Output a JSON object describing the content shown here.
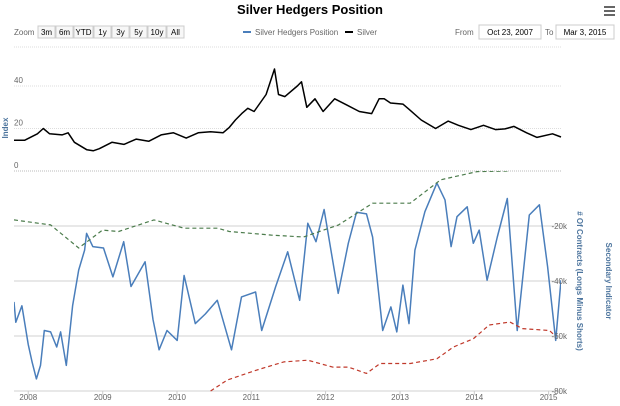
{
  "chart_data": {
    "type": "line",
    "title": "Silver Hedgers Position",
    "range_selector": {
      "label": "Zoom",
      "buttons": [
        "3m",
        "6m",
        "YTD",
        "1y",
        "3y",
        "5y",
        "10y",
        "All"
      ],
      "from_label": "From",
      "from_value": "Oct 23, 2007",
      "to_label": "To",
      "to_value": "Mar 3, 2015"
    },
    "legend": {
      "placement": "top",
      "items": [
        {
          "name": "Silver Hedgers Position",
          "color": "#4a7ebb"
        },
        {
          "name": "Silver",
          "color": "#000000"
        }
      ]
    },
    "x_axis": {
      "type": "datetime",
      "range": [
        "2007-10-23",
        "2015-03-03"
      ],
      "tick_labels": [
        "2008",
        "2009",
        "2010",
        "2011",
        "2012",
        "2013",
        "2014",
        "2015"
      ]
    },
    "panels": [
      {
        "id": "top",
        "ylabel": "Index",
        "ylim": [
          0,
          55
        ],
        "tick_labels": [
          "0",
          "20",
          "40"
        ],
        "ticks": [
          0,
          20,
          40
        ],
        "grid": "dotted"
      },
      {
        "id": "bottom",
        "ylabel_right_1": "# Of Contracts (Longs Minus Shorts)",
        "ylabel_right_2": "Secondary Indicator",
        "ylim": [
          -80000,
          0
        ],
        "tick_labels": [
          "-20k",
          "-40k",
          "-60k",
          "-80k"
        ],
        "ticks": [
          -20000,
          -40000,
          -60000,
          -80000
        ],
        "grid": "solid"
      }
    ],
    "series": [
      {
        "name": "Silver",
        "panel": "top",
        "color": "#000000",
        "dash": "solid",
        "points": [
          [
            "2007-10-23",
            14.5
          ],
          [
            "2007-12-15",
            14.5
          ],
          [
            "2008-02-15",
            17.5
          ],
          [
            "2008-03-15",
            20
          ],
          [
            "2008-04-15",
            17.5
          ],
          [
            "2008-06-15",
            17
          ],
          [
            "2008-07-15",
            18
          ],
          [
            "2008-08-15",
            13.5
          ],
          [
            "2008-10-15",
            10
          ],
          [
            "2008-11-15",
            9.5
          ],
          [
            "2008-12-15",
            10.5
          ],
          [
            "2009-02-15",
            13.5
          ],
          [
            "2009-04-15",
            12.5
          ],
          [
            "2009-06-15",
            15
          ],
          [
            "2009-08-15",
            14
          ],
          [
            "2009-10-15",
            17
          ],
          [
            "2009-12-15",
            18
          ],
          [
            "2010-02-15",
            15.5
          ],
          [
            "2010-04-15",
            18
          ],
          [
            "2010-06-15",
            18.5
          ],
          [
            "2010-08-15",
            18
          ],
          [
            "2010-09-15",
            20.5
          ],
          [
            "2010-10-15",
            24
          ],
          [
            "2010-11-15",
            27
          ],
          [
            "2010-12-15",
            29.5
          ],
          [
            "2011-01-15",
            28
          ],
          [
            "2011-03-15",
            36
          ],
          [
            "2011-04-25",
            48
          ],
          [
            "2011-05-15",
            36
          ],
          [
            "2011-06-15",
            35
          ],
          [
            "2011-08-15",
            40
          ],
          [
            "2011-09-05",
            42
          ],
          [
            "2011-10-01",
            30
          ],
          [
            "2011-11-10",
            34
          ],
          [
            "2011-12-20",
            28
          ],
          [
            "2012-02-15",
            34
          ],
          [
            "2012-04-15",
            31
          ],
          [
            "2012-06-15",
            28
          ],
          [
            "2012-08-15",
            27
          ],
          [
            "2012-09-20",
            34
          ],
          [
            "2012-10-15",
            34
          ],
          [
            "2012-11-15",
            32
          ],
          [
            "2013-01-15",
            31.5
          ],
          [
            "2013-02-15",
            29
          ],
          [
            "2013-04-15",
            24
          ],
          [
            "2013-06-25",
            20
          ],
          [
            "2013-08-25",
            23.5
          ],
          [
            "2013-10-15",
            21.5
          ],
          [
            "2013-12-15",
            19.5
          ],
          [
            "2014-02-15",
            21.5
          ],
          [
            "2014-04-15",
            19.5
          ],
          [
            "2014-06-01",
            19.8
          ],
          [
            "2014-07-15",
            21
          ],
          [
            "2014-09-15",
            18
          ],
          [
            "2014-11-05",
            15.8
          ],
          [
            "2015-01-20",
            17.5
          ],
          [
            "2015-03-03",
            16
          ]
        ]
      },
      {
        "name": "Silver Hedgers Position",
        "panel": "bottom",
        "color": "#4a7ebb",
        "dash": "solid",
        "points": [
          [
            "2007-10-23",
            -47600
          ],
          [
            "2007-11-01",
            -55000
          ],
          [
            "2007-12-01",
            -49000
          ],
          [
            "2008-01-01",
            -63000
          ],
          [
            "2008-01-20",
            -69500
          ],
          [
            "2008-02-10",
            -75600
          ],
          [
            "2008-03-01",
            -70700
          ],
          [
            "2008-03-20",
            -58000
          ],
          [
            "2008-04-20",
            -58500
          ],
          [
            "2008-05-20",
            -64000
          ],
          [
            "2008-06-08",
            -58500
          ],
          [
            "2008-07-06",
            -70700
          ],
          [
            "2008-08-06",
            -49000
          ],
          [
            "2008-09-05",
            -36000
          ],
          [
            "2008-10-04",
            -28800
          ],
          [
            "2008-10-14",
            -22700
          ],
          [
            "2008-11-13",
            -27500
          ],
          [
            "2009-01-05",
            -28000
          ],
          [
            "2009-02-20",
            -38500
          ],
          [
            "2009-04-14",
            -25700
          ],
          [
            "2009-05-20",
            -42000
          ],
          [
            "2009-07-28",
            -33000
          ],
          [
            "2009-09-05",
            -54000
          ],
          [
            "2009-10-05",
            -65000
          ],
          [
            "2009-11-13",
            -58000
          ],
          [
            "2010-01-02",
            -61600
          ],
          [
            "2010-02-05",
            -38000
          ],
          [
            "2010-04-01",
            -55500
          ],
          [
            "2010-05-20",
            -52000
          ],
          [
            "2010-07-18",
            -47000
          ],
          [
            "2010-09-26",
            -65000
          ],
          [
            "2010-11-14",
            -45800
          ],
          [
            "2011-01-22",
            -44000
          ],
          [
            "2011-02-21",
            -58000
          ],
          [
            "2011-05-01",
            -42000
          ],
          [
            "2011-06-29",
            -29400
          ],
          [
            "2011-08-27",
            -47000
          ],
          [
            "2011-10-06",
            -19000
          ],
          [
            "2011-11-15",
            -25700
          ],
          [
            "2011-12-25",
            -14000
          ],
          [
            "2012-03-03",
            -44500
          ],
          [
            "2012-04-22",
            -26300
          ],
          [
            "2012-06-01",
            -15000
          ],
          [
            "2012-07-20",
            -15600
          ],
          [
            "2012-08-19",
            -24000
          ],
          [
            "2012-10-08",
            -58000
          ],
          [
            "2012-11-17",
            -49400
          ],
          [
            "2012-12-16",
            -58500
          ],
          [
            "2013-01-15",
            -41500
          ],
          [
            "2013-02-14",
            -55500
          ],
          [
            "2013-03-15",
            -28800
          ],
          [
            "2013-05-03",
            -14800
          ],
          [
            "2013-07-01",
            -4400
          ],
          [
            "2013-08-10",
            -10500
          ],
          [
            "2013-09-09",
            -27500
          ],
          [
            "2013-10-08",
            -16600
          ],
          [
            "2013-11-27",
            -13000
          ],
          [
            "2013-12-27",
            -26300
          ],
          [
            "2014-01-25",
            -21500
          ],
          [
            "2014-03-05",
            -39700
          ],
          [
            "2014-04-24",
            -24000
          ],
          [
            "2014-06-12",
            -10000
          ],
          [
            "2014-07-31",
            -58000
          ],
          [
            "2014-09-28",
            -16000
          ],
          [
            "2014-11-17",
            -12300
          ],
          [
            "2014-12-27",
            -34800
          ],
          [
            "2015-02-05",
            -61600
          ],
          [
            "2015-03-03",
            -39700
          ]
        ]
      },
      {
        "panel": "bottom",
        "color": "#4c7c4c",
        "dash": "dashed",
        "points": [
          [
            "2007-10-23",
            -17800
          ],
          [
            "2008-04-20",
            -19600
          ],
          [
            "2008-09-05",
            -28000
          ],
          [
            "2008-12-31",
            -21500
          ],
          [
            "2009-03-20",
            -22000
          ],
          [
            "2009-09-10",
            -17800
          ],
          [
            "2010-02-05",
            -20800
          ],
          [
            "2010-07-20",
            -20800
          ],
          [
            "2010-09-15",
            -22000
          ],
          [
            "2011-04-10",
            -23300
          ],
          [
            "2011-09-15",
            -24000
          ],
          [
            "2012-03-05",
            -19600
          ],
          [
            "2012-08-19",
            -11700
          ],
          [
            "2013-02-20",
            -11700
          ],
          [
            "2013-07-20",
            -3200
          ],
          [
            "2014-01-15",
            -200
          ],
          [
            "2014-06-25",
            0
          ]
        ]
      },
      {
        "panel": "bottom",
        "color": "#c0392b",
        "dash": "dashed",
        "points": [
          [
            "2010-06-15",
            -80000
          ],
          [
            "2010-09-05",
            -76000
          ],
          [
            "2011-01-22",
            -72500
          ],
          [
            "2011-06-10",
            -69400
          ],
          [
            "2011-10-06",
            -68800
          ],
          [
            "2012-02-05",
            -71300
          ],
          [
            "2012-04-22",
            -71300
          ],
          [
            "2012-07-20",
            -73600
          ],
          [
            "2012-09-25",
            -70000
          ],
          [
            "2013-02-20",
            -70000
          ],
          [
            "2013-07-01",
            -68300
          ],
          [
            "2013-09-20",
            -64000
          ],
          [
            "2013-12-27",
            -61000
          ],
          [
            "2014-03-15",
            -56000
          ],
          [
            "2014-06-25",
            -54900
          ],
          [
            "2014-08-25",
            -57300
          ],
          [
            "2015-01-05",
            -58000
          ],
          [
            "2015-02-01",
            -59800
          ]
        ]
      }
    ]
  },
  "menu_icon": "hamburger-menu-icon"
}
